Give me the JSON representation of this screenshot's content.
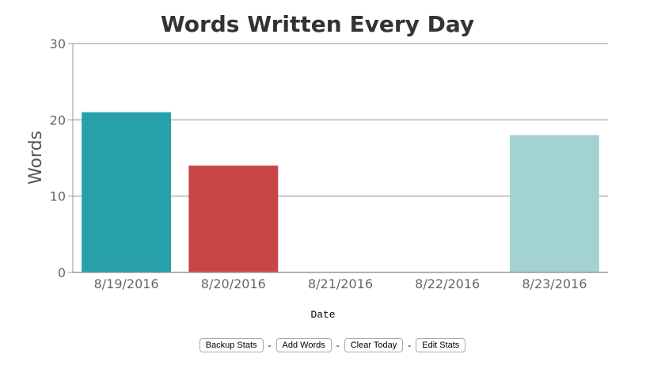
{
  "chart_data": {
    "type": "bar",
    "title": "Words Written Every Day",
    "xlabel": "Date",
    "ylabel": "Words",
    "categories": [
      "8/19/2016",
      "8/20/2016",
      "8/21/2016",
      "8/22/2016",
      "8/23/2016"
    ],
    "values": [
      21,
      14,
      0,
      0,
      18
    ],
    "colors": [
      "#26a1ab",
      "#c94647",
      "#9aa3f0",
      "#8fc7a0",
      "#a3d3d0"
    ],
    "ylim": [
      0,
      30
    ],
    "yticks": [
      "0",
      "10",
      "20",
      "30"
    ],
    "grid": true
  },
  "toolbar": {
    "backup_label": "Backup Stats",
    "add_label": "Add Words",
    "clear_label": "Clear Today",
    "edit_label": "Edit Stats",
    "separator": "-"
  }
}
